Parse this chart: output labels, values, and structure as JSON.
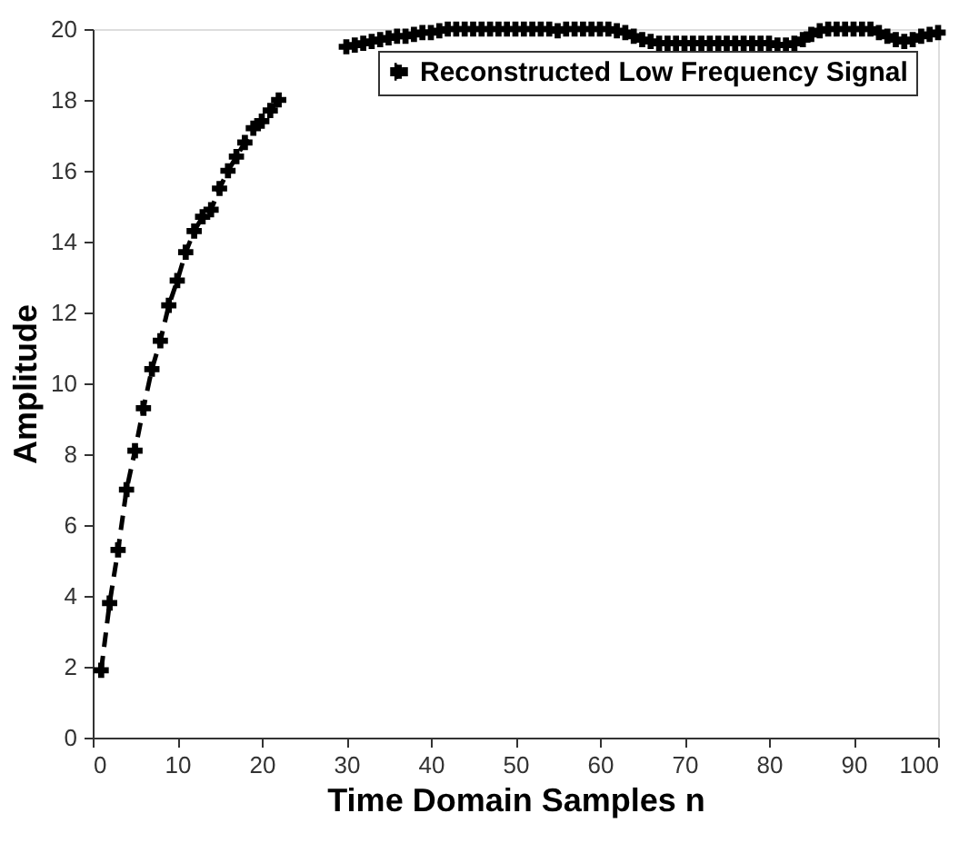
{
  "chart_data": {
    "type": "line",
    "xlabel": "Time Domain Samples n",
    "ylabel": "Amplitude",
    "x": [
      1,
      2,
      3,
      4,
      5,
      6,
      7,
      8,
      9,
      10,
      11,
      12,
      13,
      14,
      15,
      16,
      17,
      18,
      19,
      20,
      21,
      22,
      23,
      24,
      25,
      26,
      27,
      28,
      29,
      30,
      31,
      32,
      33,
      34,
      35,
      36,
      37,
      38,
      39,
      40,
      41,
      42,
      43,
      44,
      45,
      46,
      47,
      48,
      49,
      50,
      51,
      52,
      53,
      54,
      55,
      56,
      57,
      58,
      59,
      60,
      61,
      62,
      63,
      64,
      65,
      66,
      67,
      68,
      69,
      70,
      71,
      72,
      73,
      74,
      75,
      76,
      77,
      78,
      79,
      80,
      81,
      82,
      83,
      84,
      85,
      86,
      87,
      88,
      89,
      90,
      91,
      92,
      93,
      94,
      95,
      96,
      97,
      98,
      99,
      100
    ],
    "series": [
      {
        "name": "Reconstructed Low Frequency Signal",
        "color": "#000000",
        "values": [
          1.9,
          3.8,
          5.3,
          7.0,
          8.1,
          9.3,
          10.4,
          11.2,
          12.2,
          12.9,
          13.7,
          14.3,
          14.7,
          14.9,
          15.5,
          16.0,
          16.4,
          16.8,
          17.2,
          17.4,
          17.7,
          18.0,
          null,
          null,
          null,
          null,
          null,
          null,
          null,
          19.5,
          19.55,
          19.6,
          19.65,
          19.7,
          19.75,
          19.8,
          19.8,
          19.85,
          19.9,
          19.9,
          19.95,
          20,
          20,
          20,
          20,
          20,
          20,
          20,
          20,
          20,
          20,
          20,
          20,
          20,
          19.95,
          20,
          20,
          20,
          20,
          20,
          20,
          19.95,
          19.9,
          19.8,
          19.7,
          19.65,
          19.6,
          19.6,
          19.6,
          19.6,
          19.6,
          19.6,
          19.6,
          19.6,
          19.6,
          19.6,
          19.6,
          19.6,
          19.6,
          19.6,
          19.55,
          19.55,
          19.6,
          19.7,
          19.85,
          19.95,
          20,
          20,
          20,
          20,
          20,
          20,
          19.9,
          19.8,
          19.7,
          19.65,
          19.7,
          19.8,
          19.85,
          19.9
        ]
      }
    ],
    "xlim": [
      0,
      100
    ],
    "xticks": [
      0,
      10,
      20,
      30,
      40,
      50,
      60,
      70,
      80,
      90,
      100
    ],
    "ylim": [
      0,
      20
    ],
    "yticks": [
      0,
      2,
      4,
      6,
      8,
      10,
      12,
      14,
      16,
      18,
      20
    ],
    "marker": "cross",
    "line_style": "dashed",
    "legend": "top right",
    "grid": false
  }
}
